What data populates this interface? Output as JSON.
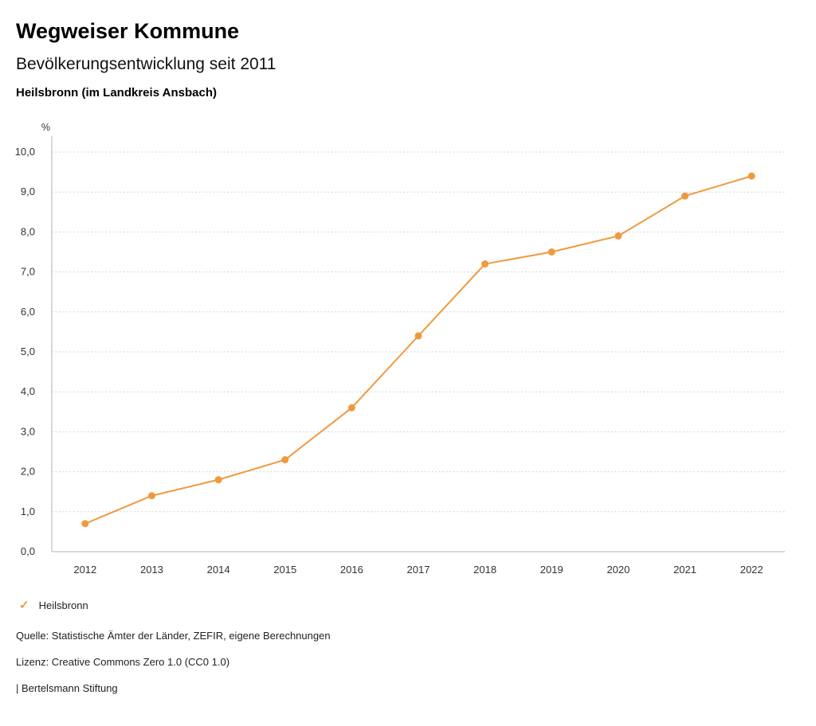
{
  "header": {
    "title": "Wegweiser Kommune",
    "subtitle": "Bevölkerungsentwicklung seit 2011",
    "region": "Heilsbronn (im Landkreis Ansbach)"
  },
  "chart_data": {
    "type": "line",
    "title": "Bevölkerungsentwicklung seit 2011",
    "subtitle": "Heilsbronn (im Landkreis Ansbach)",
    "unit_label": "%",
    "categories": [
      "2012",
      "2013",
      "2014",
      "2015",
      "2016",
      "2017",
      "2018",
      "2019",
      "2020",
      "2021",
      "2022"
    ],
    "series": [
      {
        "name": "Heilsbronn",
        "values": [
          0.7,
          1.4,
          1.8,
          2.3,
          3.6,
          5.4,
          7.2,
          7.5,
          7.9,
          8.9,
          9.4
        ],
        "color": "#f0993e"
      }
    ],
    "ylim": [
      0,
      10
    ],
    "y_ticks": [
      0,
      1,
      2,
      3,
      4,
      5,
      6,
      7,
      8,
      9,
      10
    ],
    "y_tick_labels": [
      "0,0",
      "1,0",
      "2,0",
      "3,0",
      "4,0",
      "5,0",
      "6,0",
      "7,0",
      "8,0",
      "9,0",
      "10,0"
    ],
    "grid": "horizontal-dotted",
    "legend_position": "bottom-left"
  },
  "legend": {
    "items": [
      {
        "label": "Heilsbronn",
        "check": "✓",
        "color": "#f0993e"
      }
    ]
  },
  "footer": {
    "source": "Quelle: Statistische Ämter der Länder, ZEFIR, eigene Berechnungen",
    "license": "Lizenz: Creative Commons Zero 1.0 (CC0 1.0)",
    "attribution": "| Bertelsmann Stiftung"
  },
  "colors": {
    "accent": "#f0993e",
    "grid": "#c9c9c9",
    "axis": "#b3b3b3",
    "text": "#1a1a1a",
    "muted": "#333333"
  }
}
